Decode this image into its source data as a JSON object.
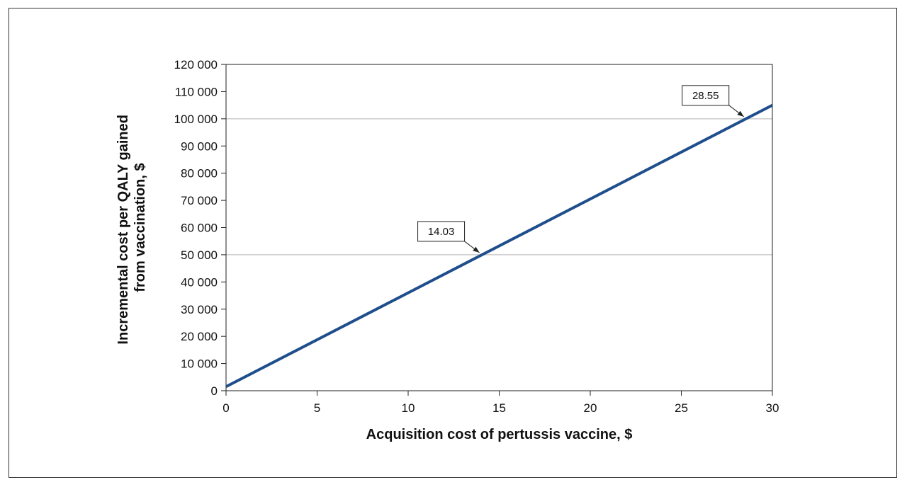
{
  "chart_data": {
    "type": "line",
    "title": "",
    "xlabel": "Acquisition cost of pertussis vaccine, $",
    "ylabel_lines": [
      "Incremental cost per QALY gained",
      "from vaccination, $"
    ],
    "xlim": [
      0,
      30
    ],
    "ylim": [
      0,
      120000
    ],
    "x_ticks": [
      0,
      5,
      10,
      15,
      20,
      25,
      30
    ],
    "x_tick_labels": [
      "0",
      "5",
      "10",
      "15",
      "20",
      "25",
      "30"
    ],
    "y_ticks": [
      0,
      10000,
      20000,
      30000,
      40000,
      50000,
      60000,
      70000,
      80000,
      90000,
      100000,
      110000,
      120000
    ],
    "y_tick_labels": [
      "0",
      "10 000",
      "20 000",
      "30 000",
      "40 000",
      "50 000",
      "60 000",
      "70 000",
      "80 000",
      "90 000",
      "100 000",
      "110 000",
      "120 000"
    ],
    "reference_lines": [
      50000,
      100000
    ],
    "series": [
      {
        "x": [
          0,
          30
        ],
        "y": [
          1500,
          105000
        ],
        "color": "#1f4e8c"
      }
    ],
    "annotations": [
      {
        "label": "14.03",
        "x": 14.03,
        "y": 50000
      },
      {
        "label": "28.55",
        "x": 28.55,
        "y": 100000
      }
    ]
  }
}
